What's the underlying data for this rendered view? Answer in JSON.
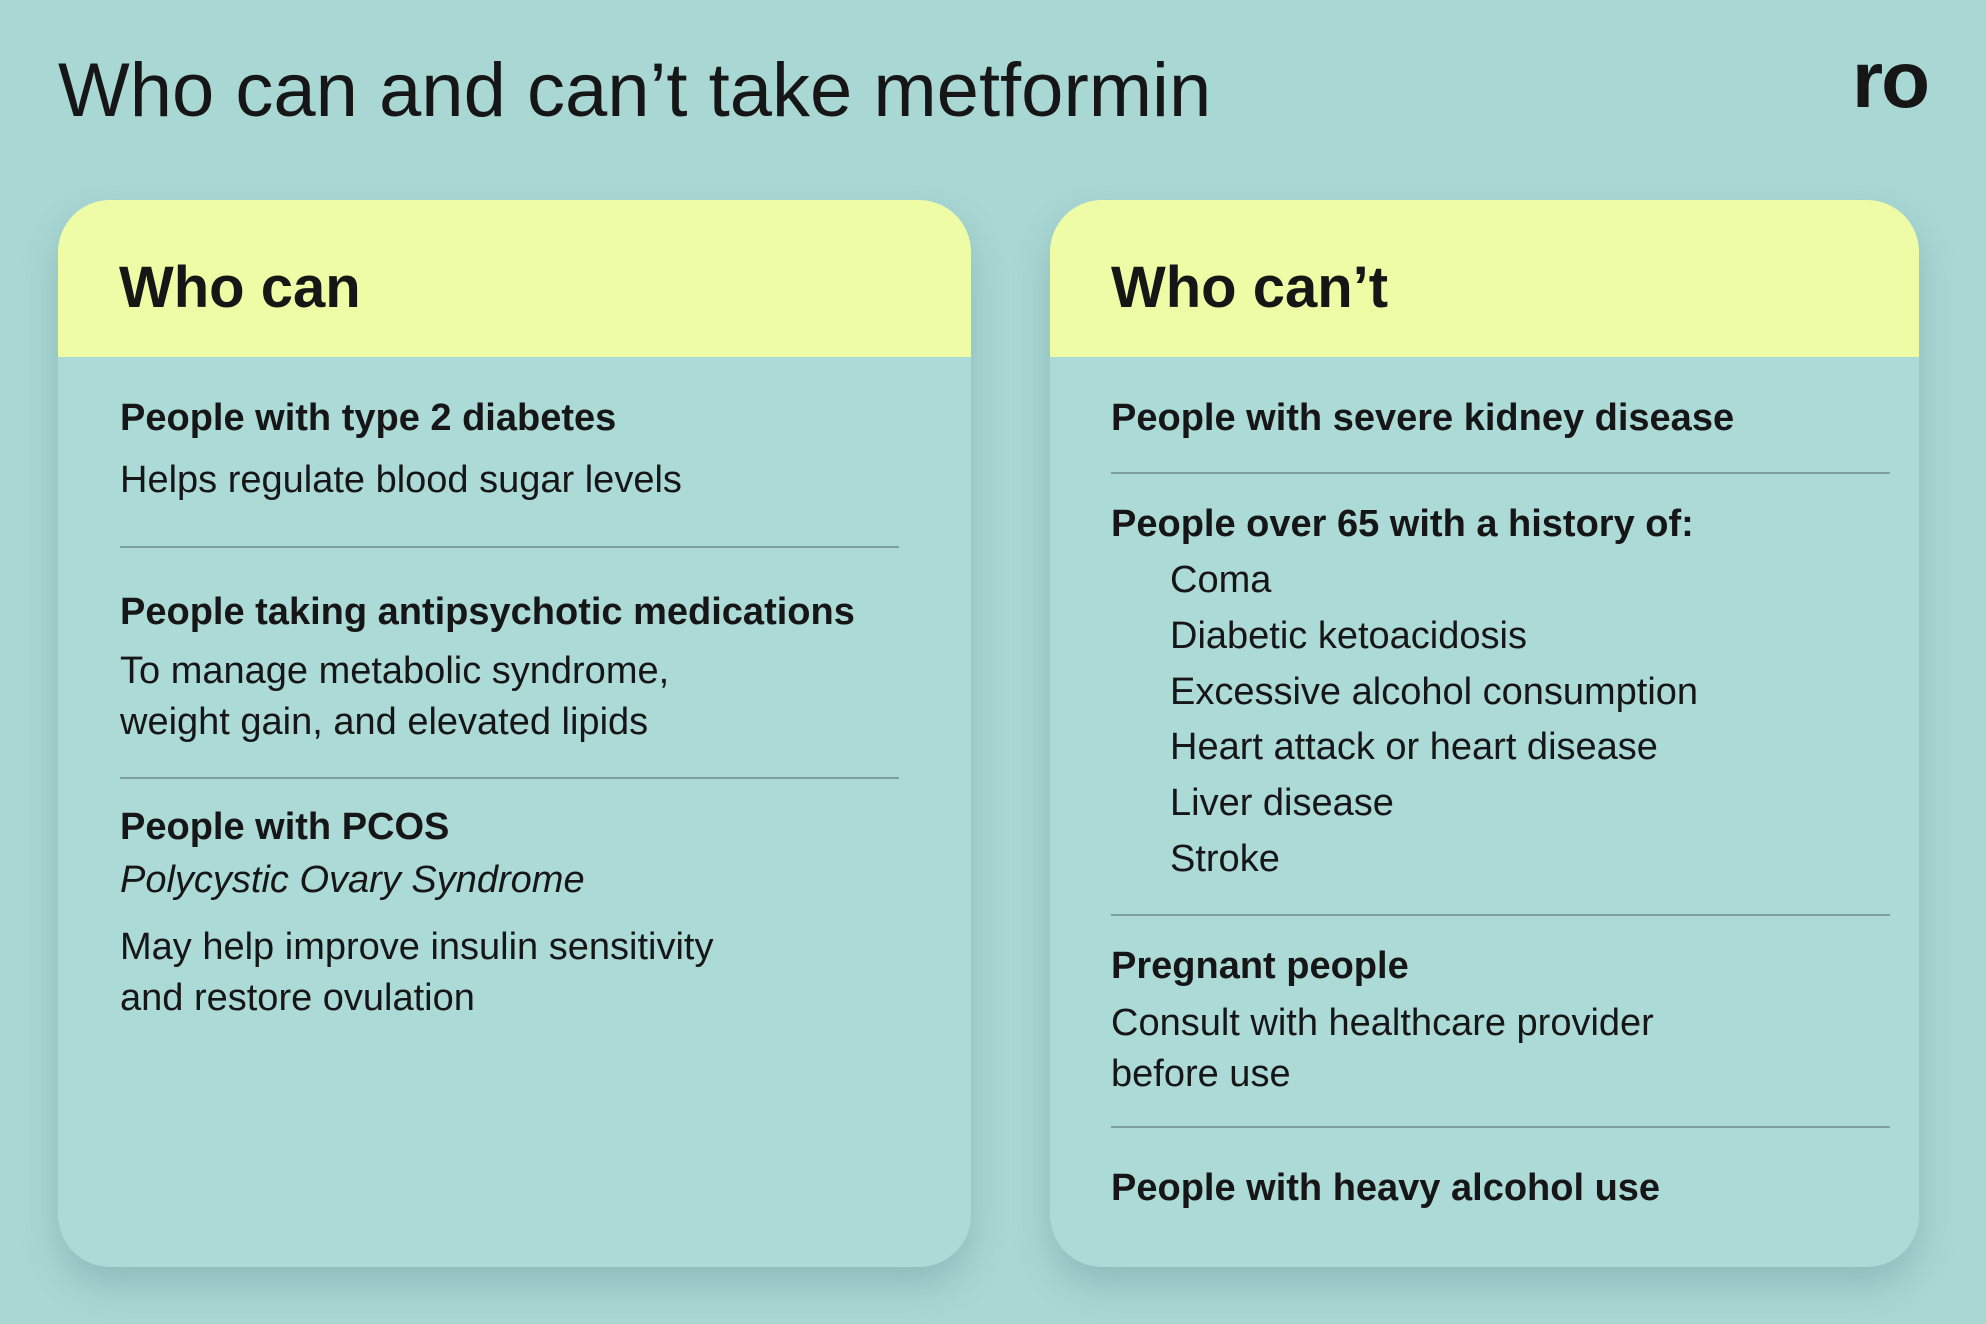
{
  "header": {
    "title": "Who can and can’t take metformin",
    "logo": "ro"
  },
  "cards": [
    {
      "heading": "Who can",
      "items": [
        {
          "title": "People with type 2 diabetes",
          "lines": [
            "Helps regulate blood sugar levels"
          ]
        },
        {
          "title": "People taking antipsychotic medications",
          "lines": [
            "To manage metabolic syndrome,",
            "weight gain, and elevated lipids"
          ]
        },
        {
          "title": "People with PCOS",
          "subtitle": "Polycystic Ovary Syndrome",
          "lines": [
            "May help improve insulin sensitivity",
            "and restore ovulation"
          ]
        }
      ]
    },
    {
      "heading": "Who can’t",
      "items": [
        {
          "title": "People with severe kidney disease"
        },
        {
          "title": "People over 65 with a history of:",
          "list": [
            "Coma",
            "Diabetic ketoacidosis",
            "Excessive alcohol consumption",
            "Heart attack or heart disease",
            "Liver disease",
            "Stroke"
          ]
        },
        {
          "title": "Pregnant people",
          "lines": [
            "Consult with healthcare provider",
            "before use"
          ]
        },
        {
          "title": "People with heavy alcohol use"
        }
      ]
    }
  ]
}
